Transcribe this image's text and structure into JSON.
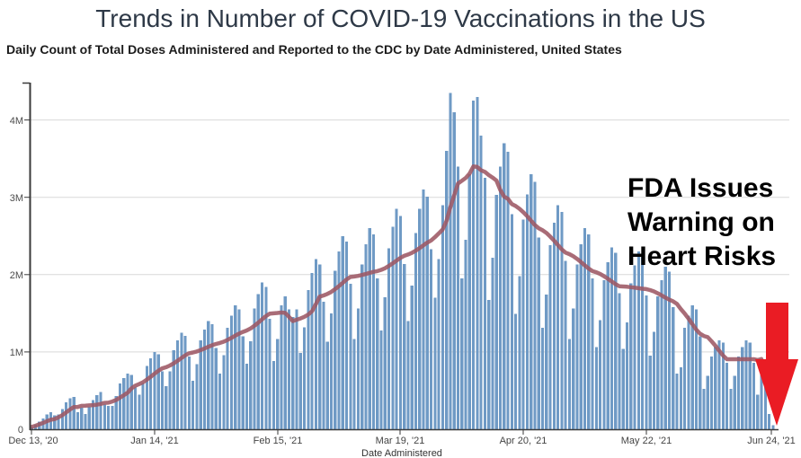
{
  "title": "Trends in Number of COVID-19 Vaccinations in the US",
  "subtitle": "Daily Count of Total Doses Administered and Reported to the CDC by Date Administered, United States",
  "annotation": {
    "line1": "FDA Issues",
    "line2": "Warning on",
    "line3": "Heart Risks",
    "arrow": "red-down-arrow",
    "arrow_color": "#ea1c24"
  },
  "chart_data": {
    "type": "bar",
    "title": "Trends in Number of COVID-19 Vaccinations in the US",
    "xlabel": "Date Administered",
    "ylabel": "",
    "x_tick_labels": [
      "Dec 13, '20",
      "Jan 14, '21",
      "Feb 15, '21",
      "Mar 19, '21",
      "Apr 20, '21",
      "May 22, '21",
      "Jun 24, '21"
    ],
    "x_tick_days": [
      0,
      32,
      64,
      96,
      128,
      160,
      193
    ],
    "y_tick_labels": [
      "0",
      "1M",
      "2M",
      "3M",
      "4M"
    ],
    "y_tick_values_millions": [
      0,
      1,
      2,
      3,
      4
    ],
    "ylim_millions": [
      0,
      4.47
    ],
    "grid": "horizontal",
    "legend": "none",
    "bar_color": "#6f9ac5",
    "line_color": "#9d5864",
    "series": [
      {
        "name": "Daily doses administered",
        "type": "bar",
        "units": "millions of doses",
        "values_millions": [
          0.03,
          0.06,
          0.1,
          0.14,
          0.19,
          0.22,
          0.18,
          0.19,
          0.26,
          0.35,
          0.4,
          0.42,
          0.22,
          0.28,
          0.2,
          0.29,
          0.38,
          0.44,
          0.48,
          0.32,
          0.3,
          0.3,
          0.43,
          0.59,
          0.66,
          0.72,
          0.7,
          0.54,
          0.45,
          0.6,
          0.82,
          0.92,
          1.0,
          0.97,
          0.75,
          0.56,
          0.75,
          1.02,
          1.15,
          1.25,
          1.21,
          0.94,
          0.63,
          0.84,
          1.15,
          1.29,
          1.4,
          1.36,
          1.05,
          0.72,
          0.96,
          1.31,
          1.47,
          1.6,
          1.55,
          1.2,
          0.85,
          1.14,
          1.56,
          1.75,
          1.9,
          1.84,
          1.43,
          0.88,
          1.17,
          1.6,
          1.72,
          1.55,
          1.45,
          1.55,
          0.99,
          1.32,
          1.8,
          2.02,
          2.2,
          2.13,
          1.65,
          1.13,
          1.5,
          2.05,
          2.3,
          2.5,
          2.43,
          1.88,
          1.17,
          1.56,
          2.13,
          2.39,
          2.6,
          2.52,
          1.95,
          1.28,
          1.71,
          2.34,
          2.62,
          2.85,
          2.76,
          2.14,
          1.4,
          1.86,
          2.54,
          2.85,
          3.1,
          3.01,
          2.33,
          1.7,
          2.2,
          2.9,
          3.6,
          4.35,
          4.1,
          3.4,
          1.95,
          2.45,
          3.3,
          4.25,
          4.3,
          3.8,
          3.25,
          1.67,
          2.22,
          3.03,
          3.4,
          3.7,
          3.59,
          2.78,
          1.49,
          1.98,
          2.71,
          3.04,
          3.3,
          3.2,
          2.48,
          1.31,
          1.74,
          2.38,
          2.67,
          2.9,
          2.81,
          2.18,
          1.17,
          1.56,
          2.13,
          2.39,
          2.6,
          2.52,
          1.95,
          1.06,
          1.41,
          1.93,
          2.16,
          2.35,
          2.28,
          1.76,
          1.04,
          1.38,
          1.89,
          2.12,
          2.3,
          2.23,
          1.73,
          0.95,
          1.26,
          1.72,
          1.93,
          2.1,
          2.04,
          1.58,
          0.72,
          0.8,
          1.31,
          1.47,
          1.6,
          1.55,
          1.2,
          0.52,
          0.69,
          0.94,
          1.06,
          1.15,
          1.12,
          0.86,
          0.52,
          0.69,
          0.94,
          1.06,
          1.15,
          1.12,
          0.86,
          0.45,
          0.78,
          0.55,
          0.2,
          0.05
        ]
      },
      {
        "name": "7-day moving average",
        "type": "line",
        "derived": "trailing-7-day-average-of-bar-series"
      }
    ]
  }
}
